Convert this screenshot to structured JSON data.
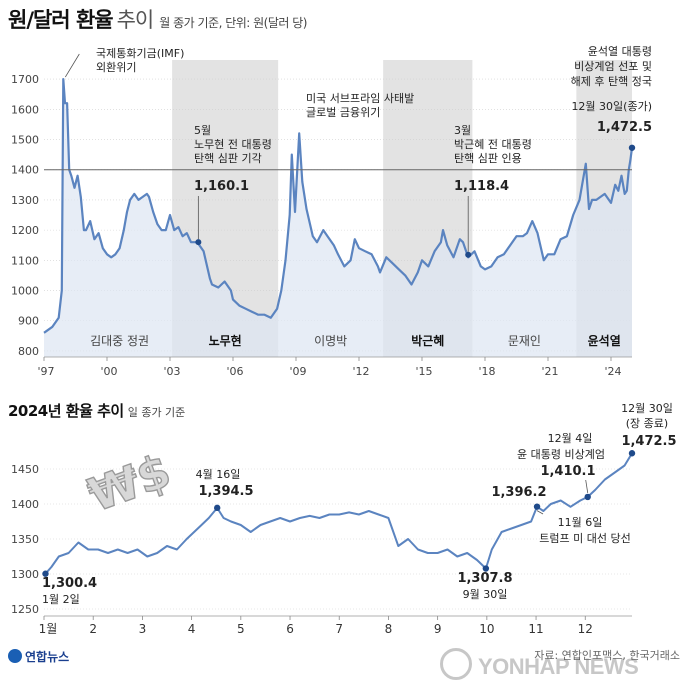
{
  "header": {
    "title": "원/달러 환율",
    "title_suffix": "추이",
    "note": "월 종가 기준, 단위: 원(달러 당)"
  },
  "chart_data": [
    {
      "type": "line",
      "title": "원/달러 환율 추이",
      "note": "월 종가 기준, 단위: 원(달러 당)",
      "unit": "원(달러 당)",
      "x_tick_labels": [
        "'97",
        "'00",
        "'03",
        "'06",
        "'09",
        "'12",
        "'15",
        "'18",
        "'21",
        "'24"
      ],
      "x_tick_years": [
        1997,
        2000,
        2003,
        2006,
        2009,
        2012,
        2015,
        2018,
        2021,
        2024
      ],
      "xlim": [
        1997.0,
        2025.0
      ],
      "y_ticks": [
        800,
        900,
        1000,
        1100,
        1200,
        1300,
        1400,
        1500,
        1600,
        1700
      ],
      "ylim": [
        780,
        1730
      ],
      "reference_line": 1400,
      "series": [
        {
          "name": "원/달러 환율",
          "x": [
            1997.0,
            1997.4,
            1997.7,
            1997.85,
            1997.92,
            1998.0,
            1998.1,
            1998.2,
            1998.3,
            1998.45,
            1998.6,
            1998.75,
            1998.9,
            1999.0,
            1999.2,
            1999.4,
            1999.6,
            1999.8,
            2000.0,
            2000.2,
            2000.4,
            2000.6,
            2000.8,
            2000.95,
            2001.1,
            2001.3,
            2001.5,
            2001.7,
            2001.9,
            2002.0,
            2002.2,
            2002.4,
            2002.6,
            2002.8,
            2003.0,
            2003.2,
            2003.4,
            2003.6,
            2003.8,
            2004.0,
            2004.3,
            2004.6,
            2004.9,
            2005.0,
            2005.3,
            2005.6,
            2005.9,
            2006.0,
            2006.3,
            2006.6,
            2006.9,
            2007.2,
            2007.5,
            2007.8,
            2008.1,
            2008.3,
            2008.5,
            2008.7,
            2008.8,
            2008.95,
            2009.15,
            2009.3,
            2009.5,
            2009.8,
            2010.0,
            2010.3,
            2010.5,
            2010.8,
            2011.0,
            2011.3,
            2011.6,
            2011.8,
            2012.0,
            2012.3,
            2012.6,
            2012.9,
            2013.0,
            2013.3,
            2013.6,
            2013.9,
            2014.2,
            2014.5,
            2014.8,
            2015.0,
            2015.3,
            2015.6,
            2015.9,
            2016.0,
            2016.2,
            2016.5,
            2016.8,
            2016.95,
            2017.2,
            2017.5,
            2017.8,
            2018.0,
            2018.3,
            2018.6,
            2018.9,
            2019.2,
            2019.5,
            2019.8,
            2020.0,
            2020.25,
            2020.5,
            2020.8,
            2021.0,
            2021.3,
            2021.6,
            2021.9,
            2022.2,
            2022.5,
            2022.8,
            2022.95,
            2023.1,
            2023.3,
            2023.5,
            2023.7,
            2023.9,
            2024.0,
            2024.2,
            2024.35,
            2024.5,
            2024.65,
            2024.75,
            2024.85,
            2024.92,
            2025.0
          ],
          "values": [
            860,
            880,
            910,
            1000,
            1700,
            1620,
            1620,
            1400,
            1380,
            1340,
            1380,
            1310,
            1200,
            1200,
            1230,
            1170,
            1190,
            1140,
            1120,
            1110,
            1120,
            1140,
            1200,
            1260,
            1300,
            1320,
            1300,
            1310,
            1320,
            1310,
            1260,
            1220,
            1200,
            1200,
            1250,
            1200,
            1210,
            1180,
            1190,
            1160,
            1160,
            1130,
            1040,
            1020,
            1010,
            1030,
            1000,
            970,
            950,
            940,
            930,
            920,
            920,
            910,
            940,
            1000,
            1100,
            1250,
            1450,
            1260,
            1520,
            1360,
            1270,
            1180,
            1160,
            1200,
            1180,
            1150,
            1120,
            1080,
            1100,
            1170,
            1140,
            1130,
            1120,
            1080,
            1060,
            1110,
            1090,
            1070,
            1050,
            1020,
            1060,
            1100,
            1080,
            1130,
            1160,
            1200,
            1150,
            1110,
            1170,
            1160,
            1110,
            1130,
            1080,
            1070,
            1080,
            1110,
            1120,
            1150,
            1180,
            1180,
            1190,
            1230,
            1190,
            1100,
            1120,
            1120,
            1170,
            1180,
            1250,
            1300,
            1420,
            1270,
            1300,
            1300,
            1310,
            1320,
            1300,
            1290,
            1350,
            1330,
            1380,
            1320,
            1330,
            1400,
            1430,
            1472.5
          ]
        }
      ],
      "eras": [
        {
          "name": "김대중 정권",
          "start": 1998.1,
          "end": 2003.1,
          "highlight": false,
          "bold": false
        },
        {
          "name": "노무현",
          "start": 2003.1,
          "end": 2008.15,
          "highlight": true,
          "bold": true
        },
        {
          "name": "이명박",
          "start": 2008.15,
          "end": 2013.15,
          "highlight": false,
          "bold": false
        },
        {
          "name": "박근혜",
          "start": 2013.15,
          "end": 2017.4,
          "highlight": true,
          "bold": true
        },
        {
          "name": "문재인",
          "start": 2017.4,
          "end": 2022.35,
          "highlight": false,
          "bold": false
        },
        {
          "name": "윤석열",
          "start": 2022.35,
          "end": 2025.0,
          "highlight": true,
          "bold": true
        }
      ],
      "annotations": [
        {
          "lines": [
            "국제통화기금(IMF)",
            "외환위기"
          ],
          "x": 1997.92,
          "y": 1700,
          "dot": false
        },
        {
          "lines": [
            "5월",
            "노무현 전 대통령",
            "탄핵 심판 기각"
          ],
          "value_label": "1,160.1",
          "x": 2004.35,
          "y": 1160.1,
          "dot": true
        },
        {
          "lines": [
            "미국 서브프라임 사태발",
            "글로벌 금융위기"
          ],
          "x": 2009.15,
          "y": 1520,
          "dot": false
        },
        {
          "lines": [
            "3월",
            "박근혜 전 대통령",
            "탄핵 심판 인용"
          ],
          "value_label": "1,118.4",
          "x": 2017.2,
          "y": 1118.4,
          "dot": true
        },
        {
          "lines": [
            "윤석열 대통령",
            "비상계엄 선포 및",
            "해제 후 탄핵 정국",
            "12월 30일(종가)"
          ],
          "value_label": "1,472.5",
          "x": 2025.0,
          "y": 1472.5,
          "dot": true
        }
      ]
    },
    {
      "type": "line",
      "title": "2024년 환율 추이",
      "note": "일 종가 기준",
      "x_tick_labels": [
        "1월",
        "2",
        "3",
        "4",
        "5",
        "6",
        "7",
        "8",
        "9",
        "10",
        "11",
        "12"
      ],
      "xlim": [
        1.0,
        12.95
      ],
      "y_ticks": [
        1250,
        1300,
        1350,
        1400,
        1450
      ],
      "ylim": [
        1240,
        1490
      ],
      "series": [
        {
          "name": "원/달러 환율(2024)",
          "x": [
            1.03,
            1.15,
            1.3,
            1.5,
            1.7,
            1.9,
            2.1,
            2.3,
            2.5,
            2.7,
            2.9,
            3.1,
            3.3,
            3.5,
            3.7,
            3.9,
            4.05,
            4.2,
            4.35,
            4.52,
            4.65,
            4.8,
            5.0,
            5.2,
            5.4,
            5.6,
            5.8,
            6.0,
            6.2,
            6.4,
            6.6,
            6.8,
            7.0,
            7.2,
            7.4,
            7.6,
            7.8,
            8.0,
            8.2,
            8.4,
            8.6,
            8.8,
            9.0,
            9.2,
            9.4,
            9.6,
            9.8,
            9.98,
            10.1,
            10.3,
            10.5,
            10.7,
            10.9,
            11.02,
            11.15,
            11.3,
            11.5,
            11.7,
            11.9,
            12.05,
            12.2,
            12.4,
            12.6,
            12.8,
            12.95
          ],
          "values": [
            1300.4,
            1310,
            1325,
            1330,
            1345,
            1335,
            1335,
            1330,
            1335,
            1330,
            1335,
            1325,
            1330,
            1340,
            1335,
            1350,
            1360,
            1370,
            1380,
            1394.5,
            1380,
            1375,
            1370,
            1360,
            1370,
            1375,
            1380,
            1375,
            1380,
            1383,
            1380,
            1385,
            1385,
            1388,
            1385,
            1390,
            1385,
            1380,
            1340,
            1350,
            1335,
            1330,
            1330,
            1335,
            1325,
            1330,
            1320,
            1307.8,
            1335,
            1360,
            1365,
            1370,
            1375,
            1396.2,
            1390,
            1400,
            1405,
            1396,
            1405,
            1410.1,
            1420,
            1435,
            1445,
            1455,
            1472.5
          ]
        }
      ],
      "annotations": [
        {
          "value_label": "1,300.4",
          "date": "1월 2일",
          "x": 1.03,
          "y": 1300.4
        },
        {
          "date": "4월 16일",
          "value_label": "1,394.5",
          "x": 4.52,
          "y": 1394.5
        },
        {
          "value_label": "1,307.8",
          "date": "9월 30일",
          "x": 9.98,
          "y": 1307.8
        },
        {
          "value_label": "1,396.2",
          "x": 11.02,
          "y": 1396.2
        },
        {
          "date": "11월 6일",
          "lines": [
            "트럼프 미 대선 당선"
          ],
          "x": 11.02,
          "y": 1396.2
        },
        {
          "date": "12월 4일",
          "lines": [
            "윤 대통령 비상계엄"
          ],
          "value_label": "1,410.1",
          "x": 12.05,
          "y": 1410.1
        },
        {
          "date": "12월 30일",
          "lines": [
            "(장 종료)"
          ],
          "value_label": "1,472.5",
          "x": 12.95,
          "y": 1472.5
        }
      ]
    }
  ],
  "footer": {
    "logo_text": "연합뉴스",
    "source": "자료: 연합인포맥스, 한국거래소",
    "watermark": "YONHAP NEWS"
  },
  "colors": {
    "line": "#5b84c0",
    "area": "#dde6f2",
    "dot": "#1f4a8a",
    "era_shade": "#e3e3e3",
    "grid": "#cfcfcf",
    "ref_line": "#666666"
  }
}
